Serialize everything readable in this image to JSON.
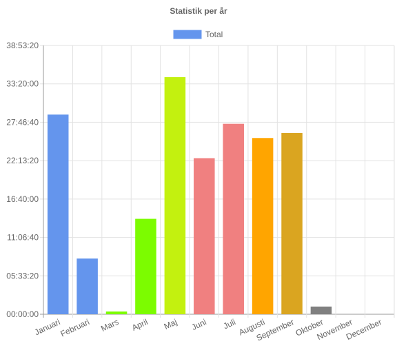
{
  "chart_data": {
    "type": "bar",
    "title": "Statistik per år",
    "legend_position": "top-center",
    "grid": true,
    "categories": [
      "Januari",
      "Februari",
      "Mars",
      "April",
      "Maj",
      "Juni",
      "Juli",
      "Augusti",
      "September",
      "Oktober",
      "November",
      "December"
    ],
    "series": [
      {
        "name": "Total",
        "legend_color": "#6495ed",
        "values": [
          104000,
          29000,
          1400,
          49700,
          123500,
          81300,
          99200,
          91800,
          94400,
          4000,
          0,
          0
        ],
        "bar_colors": [
          "#6495ed",
          "#6495ed",
          "#7cfc00",
          "#7cfc00",
          "#c3f10f",
          "#f08080",
          "#f08080",
          "#ffa500",
          "#daa520",
          "#808080",
          "#808080",
          "#808080"
        ]
      }
    ],
    "y_tick_values": [
      0,
      20000,
      40000,
      60000,
      80000,
      100000,
      120000,
      140000
    ],
    "y_tick_labels": [
      "00:00:00",
      "05:33:20",
      "11:06:40",
      "16:40:00",
      "22:13:20",
      "27:46:40",
      "33:20:00",
      "38:53:20"
    ],
    "ylim": [
      0,
      140000
    ],
    "y_unit": "seconds shown as hh:mm:ss"
  }
}
